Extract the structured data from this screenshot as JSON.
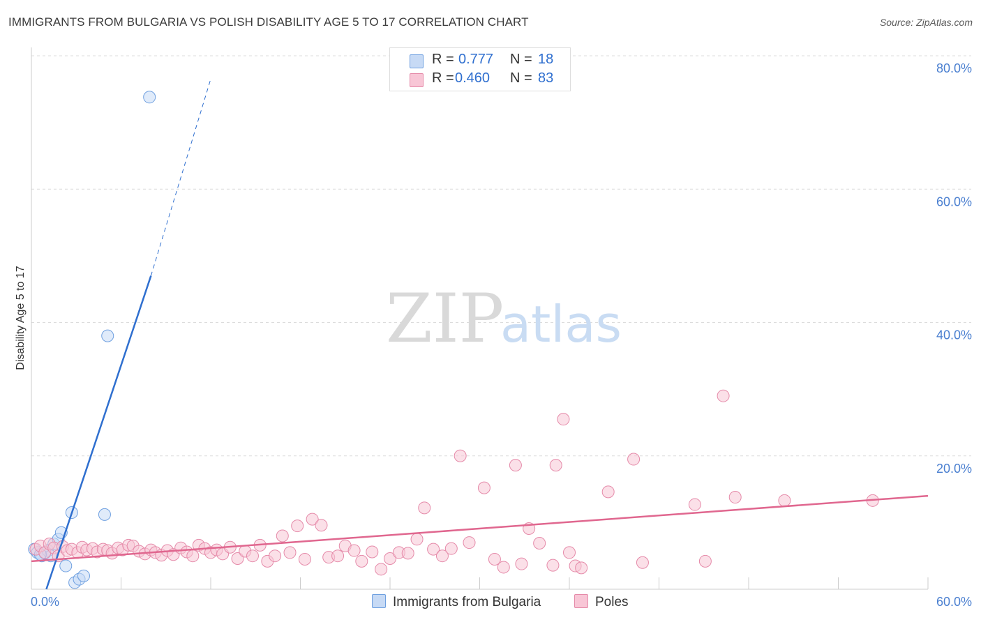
{
  "chart_data": {
    "type": "scatter",
    "title": "IMMIGRANTS FROM BULGARIA VS POLISH DISABILITY AGE 5 TO 17 CORRELATION CHART",
    "source": "Source: ZipAtlas.com",
    "xlabel": "",
    "ylabel": "Disability Age 5 to 17",
    "xlim": [
      0,
      60
    ],
    "ylim": [
      0,
      80
    ],
    "y_ticks": [
      {
        "value": 20,
        "label": "20.0%"
      },
      {
        "value": 40,
        "label": "40.0%"
      },
      {
        "value": 60,
        "label": "60.0%"
      },
      {
        "value": 80,
        "label": "80.0%"
      }
    ],
    "x_tick_labels": {
      "min": "0.0%",
      "max": "60.0%"
    },
    "grid": true,
    "watermark": {
      "zip": "ZIP",
      "atlas": "atlas"
    },
    "legend": {
      "placement": "top-center",
      "rows": [
        {
          "r_label": "R =",
          "r_value": "0.777",
          "n_label": "N =",
          "n_value": "18"
        },
        {
          "r_label": "R =",
          "r_value": "0.460",
          "n_label": "N =",
          "n_value": "83"
        }
      ]
    },
    "series": [
      {
        "name": "Immigrants from Bulgaria",
        "color": "#6fa0e0",
        "fill": "#c7daf5",
        "points": [
          [
            0.2,
            6.0
          ],
          [
            0.4,
            5.5
          ],
          [
            0.7,
            5.0
          ],
          [
            0.9,
            5.4
          ],
          [
            1.1,
            5.8
          ],
          [
            1.3,
            5.0
          ],
          [
            1.5,
            6.8
          ],
          [
            1.8,
            7.5
          ],
          [
            2.0,
            8.5
          ],
          [
            2.3,
            3.5
          ],
          [
            2.7,
            11.5
          ],
          [
            2.9,
            1.0
          ],
          [
            3.2,
            1.5
          ],
          [
            3.5,
            2.0
          ],
          [
            4.9,
            11.2
          ],
          [
            5.1,
            38.0
          ],
          [
            7.9,
            73.8
          ],
          [
            0.6,
            5.2
          ]
        ],
        "trend": {
          "x0": 1.0,
          "y0": 0.0,
          "x1": 8.0,
          "y1": 47.0,
          "dash_x1": 12.0,
          "dash_y1": 76.5,
          "color": "#2f6fcf"
        }
      },
      {
        "name": "Poles",
        "color": "#e58aa9",
        "fill": "#f8c6d6",
        "points": [
          [
            0.3,
            6.0
          ],
          [
            0.6,
            6.5
          ],
          [
            0.9,
            5.5
          ],
          [
            1.2,
            6.8
          ],
          [
            1.5,
            6.2
          ],
          [
            1.8,
            5.0
          ],
          [
            2.1,
            6.4
          ],
          [
            2.4,
            5.8
          ],
          [
            2.7,
            6.0
          ],
          [
            3.1,
            5.5
          ],
          [
            3.4,
            6.3
          ],
          [
            3.7,
            5.9
          ],
          [
            4.1,
            6.1
          ],
          [
            4.4,
            5.6
          ],
          [
            4.8,
            6.0
          ],
          [
            5.1,
            5.8
          ],
          [
            5.4,
            5.4
          ],
          [
            5.8,
            6.2
          ],
          [
            6.1,
            5.9
          ],
          [
            6.5,
            6.6
          ],
          [
            6.8,
            6.5
          ],
          [
            7.2,
            5.7
          ],
          [
            7.6,
            5.3
          ],
          [
            8.0,
            5.9
          ],
          [
            8.3,
            5.5
          ],
          [
            8.7,
            5.1
          ],
          [
            9.1,
            5.8
          ],
          [
            9.5,
            5.2
          ],
          [
            10.0,
            6.2
          ],
          [
            10.4,
            5.6
          ],
          [
            10.8,
            5.0
          ],
          [
            11.2,
            6.6
          ],
          [
            11.6,
            6.1
          ],
          [
            12.0,
            5.5
          ],
          [
            12.4,
            5.9
          ],
          [
            12.8,
            5.3
          ],
          [
            13.3,
            6.3
          ],
          [
            13.8,
            4.6
          ],
          [
            14.3,
            5.7
          ],
          [
            14.8,
            5.0
          ],
          [
            15.3,
            6.6
          ],
          [
            15.8,
            4.2
          ],
          [
            16.3,
            5.0
          ],
          [
            16.8,
            8.0
          ],
          [
            17.3,
            5.5
          ],
          [
            17.8,
            9.5
          ],
          [
            18.3,
            4.5
          ],
          [
            18.8,
            10.5
          ],
          [
            19.4,
            9.6
          ],
          [
            19.9,
            4.8
          ],
          [
            20.5,
            5.0
          ],
          [
            21.0,
            6.5
          ],
          [
            21.6,
            5.8
          ],
          [
            22.1,
            4.2
          ],
          [
            22.8,
            5.6
          ],
          [
            23.4,
            3.0
          ],
          [
            24.0,
            4.6
          ],
          [
            24.6,
            5.5
          ],
          [
            25.2,
            5.4
          ],
          [
            25.8,
            7.5
          ],
          [
            26.3,
            12.2
          ],
          [
            26.9,
            6.0
          ],
          [
            27.5,
            5.0
          ],
          [
            28.1,
            6.1
          ],
          [
            28.7,
            20.0
          ],
          [
            29.3,
            7.0
          ],
          [
            30.3,
            15.2
          ],
          [
            31.0,
            4.5
          ],
          [
            31.6,
            3.3
          ],
          [
            32.4,
            18.6
          ],
          [
            33.3,
            9.1
          ],
          [
            34.0,
            6.9
          ],
          [
            35.1,
            18.6
          ],
          [
            36.0,
            5.5
          ],
          [
            36.4,
            3.5
          ],
          [
            38.6,
            14.6
          ],
          [
            40.3,
            19.5
          ],
          [
            40.9,
            4.0
          ],
          [
            44.4,
            12.7
          ],
          [
            45.1,
            4.2
          ],
          [
            47.1,
            13.8
          ],
          [
            50.4,
            13.3
          ],
          [
            56.3,
            13.3
          ]
        ],
        "extra_points": [
          [
            36.8,
            3.2
          ],
          [
            34.9,
            3.6
          ],
          [
            35.6,
            25.5
          ],
          [
            46.3,
            29.0
          ],
          [
            32.8,
            3.8
          ]
        ],
        "trend": {
          "x0": 0.0,
          "y0": 4.2,
          "x1": 60.0,
          "y1": 14.0,
          "color": "#e0678f"
        }
      }
    ]
  }
}
